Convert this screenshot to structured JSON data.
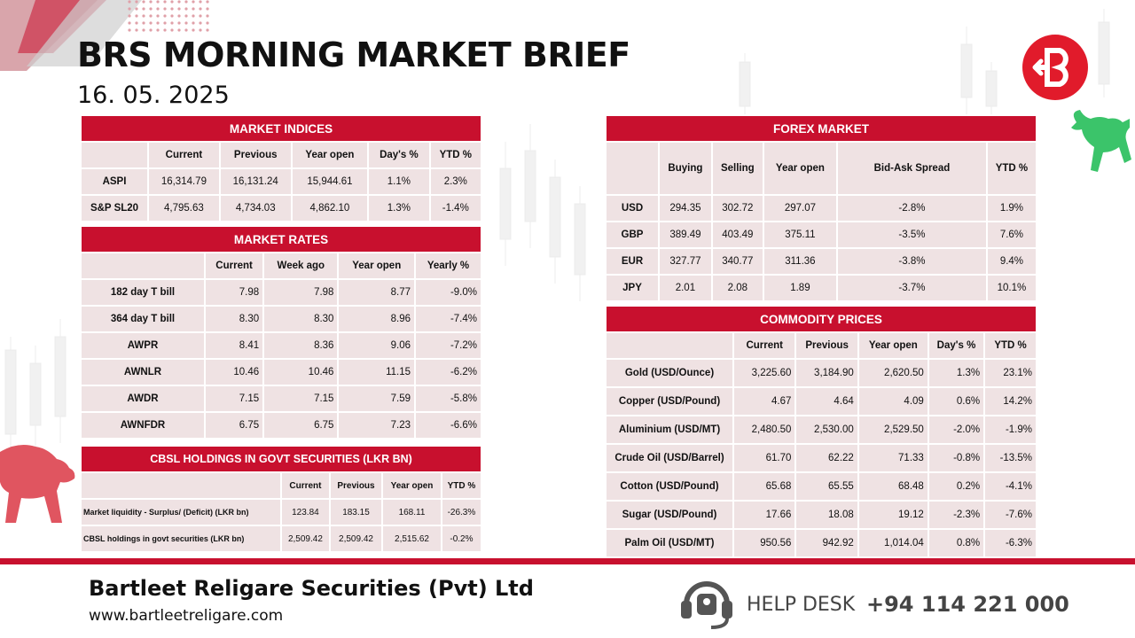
{
  "header": {
    "title": "BRS MORNING MARKET BRIEF",
    "date": "16. 05. 2025"
  },
  "market_indices": {
    "title": "MARKET INDICES",
    "columns": [
      "Current",
      "Previous",
      "Year open",
      "Day's %",
      "YTD %"
    ],
    "rows": [
      {
        "label": "ASPI",
        "current": "16,314.79",
        "previous": "16,131.24",
        "year_open": "15,944.61",
        "day_pct": "1.1%",
        "ytd_pct": "2.3%"
      },
      {
        "label": "S&P SL20",
        "current": "4,795.63",
        "previous": "4,734.03",
        "year_open": "4,862.10",
        "day_pct": "1.3%",
        "ytd_pct": "-1.4%"
      }
    ]
  },
  "market_rates": {
    "title": "MARKET RATES",
    "columns": [
      "Current",
      "Week ago",
      "Year open",
      "Yearly %"
    ],
    "rows": [
      {
        "label": "182 day T bill",
        "current": "7.98",
        "week_ago": "7.98",
        "year_open": "8.77",
        "yearly_pct": "-9.0%"
      },
      {
        "label": "364 day T bill",
        "current": "8.30",
        "week_ago": "8.30",
        "year_open": "8.96",
        "yearly_pct": "-7.4%"
      },
      {
        "label": "AWPR",
        "current": "8.41",
        "week_ago": "8.36",
        "year_open": "9.06",
        "yearly_pct": "-7.2%"
      },
      {
        "label": "AWNLR",
        "current": "10.46",
        "week_ago": "10.46",
        "year_open": "11.15",
        "yearly_pct": "-6.2%"
      },
      {
        "label": "AWDR",
        "current": "7.15",
        "week_ago": "7.15",
        "year_open": "7.59",
        "yearly_pct": "-5.8%"
      },
      {
        "label": "AWNFDR",
        "current": "6.75",
        "week_ago": "6.75",
        "year_open": "7.23",
        "yearly_pct": "-6.6%"
      }
    ]
  },
  "cbsl": {
    "title": "CBSL HOLDINGS IN GOVT SECURITIES (LKR BN)",
    "columns": [
      "Current",
      "Previous",
      "Year open",
      "YTD %"
    ],
    "rows": [
      {
        "label": "Market liquidity - Surplus/ (Deficit) (LKR bn)",
        "current": "123.84",
        "previous": "183.15",
        "year_open": "168.11",
        "ytd_pct": "-26.3%"
      },
      {
        "label": "CBSL holdings in govt securities (LKR bn)",
        "current": "2,509.42",
        "previous": "2,509.42",
        "year_open": "2,515.62",
        "ytd_pct": "-0.2%"
      }
    ]
  },
  "forex": {
    "title": "FOREX MARKET",
    "columns": [
      "Buying",
      "Selling",
      "Year open",
      "Bid-Ask Spread",
      "YTD %"
    ],
    "rows": [
      {
        "label": "USD",
        "buying": "294.35",
        "selling": "302.72",
        "year_open": "297.07",
        "spread": "-2.8%",
        "ytd_pct": "1.9%"
      },
      {
        "label": "GBP",
        "buying": "389.49",
        "selling": "403.49",
        "year_open": "375.11",
        "spread": "-3.5%",
        "ytd_pct": "7.6%"
      },
      {
        "label": "EUR",
        "buying": "327.77",
        "selling": "340.77",
        "year_open": "311.36",
        "spread": "-3.8%",
        "ytd_pct": "9.4%"
      },
      {
        "label": "JPY",
        "buying": "2.01",
        "selling": "2.08",
        "year_open": "1.89",
        "spread": "-3.7%",
        "ytd_pct": "10.1%"
      }
    ]
  },
  "commodities": {
    "title": "COMMODITY PRICES",
    "columns": [
      "Current",
      "Previous",
      "Year open",
      "Day's %",
      "YTD %"
    ],
    "rows": [
      {
        "label": "Gold (USD/Ounce)",
        "current": "3,225.60",
        "previous": "3,184.90",
        "year_open": "2,620.50",
        "day_pct": "1.3%",
        "ytd_pct": "23.1%"
      },
      {
        "label": "Copper (USD/Pound)",
        "current": "4.67",
        "previous": "4.64",
        "year_open": "4.09",
        "day_pct": "0.6%",
        "ytd_pct": "14.2%"
      },
      {
        "label": "Aluminium (USD/MT)",
        "current": "2,480.50",
        "previous": "2,530.00",
        "year_open": "2,529.50",
        "day_pct": "-2.0%",
        "ytd_pct": "-1.9%"
      },
      {
        "label": "Crude Oil (USD/Barrel)",
        "current": "61.70",
        "previous": "62.22",
        "year_open": "71.33",
        "day_pct": "-0.8%",
        "ytd_pct": "-13.5%"
      },
      {
        "label": "Cotton (USD/Pound)",
        "current": "65.68",
        "previous": "65.55",
        "year_open": "68.48",
        "day_pct": "0.2%",
        "ytd_pct": "-4.1%"
      },
      {
        "label": "Sugar (USD/Pound)",
        "current": "17.66",
        "previous": "18.08",
        "year_open": "19.12",
        "day_pct": "-2.3%",
        "ytd_pct": "-7.6%"
      },
      {
        "label": "Palm Oil (USD/MT)",
        "current": "950.56",
        "previous": "942.92",
        "year_open": "1,014.04",
        "day_pct": "0.8%",
        "ytd_pct": "-6.3%"
      }
    ]
  },
  "footer": {
    "company": "Bartleet Religare Securities (Pvt) Ltd",
    "website": "www.bartleetreligare.com",
    "helpdesk_label": "HELP DESK",
    "phone": "+94 114 221 000"
  },
  "colors": {
    "brand_red": "#c8102e",
    "cell_bg": "#efe2e3",
    "bull_green": "#3bc46a"
  },
  "icons": [
    "brs-logo-icon",
    "bull-icon",
    "bear-icon",
    "headset-icon"
  ]
}
